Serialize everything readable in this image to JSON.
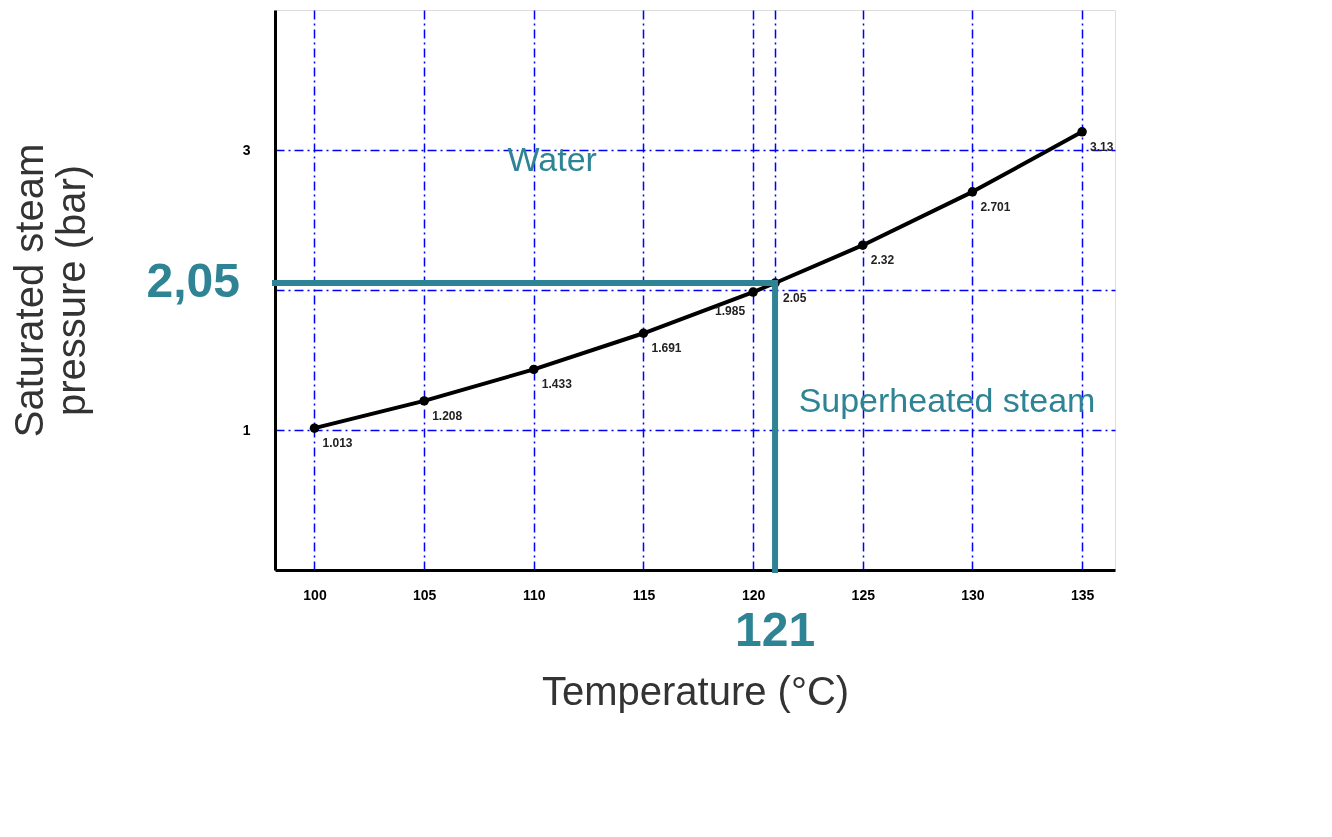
{
  "chart_data": {
    "type": "line",
    "xlabel": "Temperature (°C)",
    "ylabel": "Saturated steam pressure (bar)",
    "x": [
      100,
      105,
      110,
      115,
      120,
      121,
      125,
      130,
      135
    ],
    "series": [
      {
        "color": "#000000",
        "values": [
          1.013,
          1.208,
          1.433,
          1.691,
          1.985,
          2.05,
          2.32,
          2.701,
          3.13
        ]
      }
    ],
    "data_labels": true,
    "marker": "circle",
    "line_style": "solid",
    "grid": true,
    "xlim": [
      98.2,
      136.5
    ],
    "ylim": [
      0,
      4
    ],
    "xticks": [
      100,
      105,
      110,
      115,
      120,
      {
        "value": 121,
        "label": null
      },
      125,
      130,
      135
    ],
    "yticks": [
      1,
      {
        "value": 2,
        "label": null
      },
      3
    ],
    "ref_lines": [
      {
        "axis": "y",
        "value": 2.05,
        "label": "2,05",
        "color": "#2e8494"
      },
      {
        "axis": "x",
        "value": 121,
        "label": "121",
        "color": "#2e8494"
      }
    ],
    "annotations": [
      "Water",
      "Superheated steam"
    ]
  }
}
